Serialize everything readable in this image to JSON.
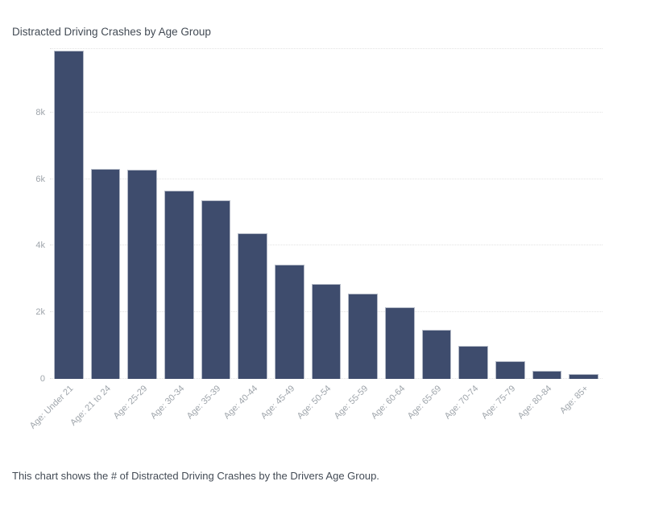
{
  "title": "Distracted Driving Crashes by Age Group",
  "caption": "This chart shows the # of Distracted Driving Crashes by the Drivers Age Group.",
  "chart_data": {
    "type": "bar",
    "title": "Distracted Driving Crashes by Age Group",
    "xlabel": "",
    "ylabel": "",
    "categories": [
      "Age: Under 21",
      "Age: 21 to 24",
      "Age: 25-29",
      "Age: 30-34",
      "Age: 35-39",
      "Age: 40-44",
      "Age: 45-49",
      "Age: 50-54",
      "Age: 55-59",
      "Age: 60-64",
      "Age: 65-69",
      "Age: 70-74",
      "Age: 75-79",
      "Age: 80-84",
      "Age: 85+"
    ],
    "values": [
      9850,
      6300,
      6290,
      5660,
      5370,
      4380,
      3440,
      2860,
      2570,
      2140,
      1480,
      990,
      520,
      240,
      140
    ],
    "ylim": [
      0,
      9900
    ],
    "yticks": [
      {
        "value": 0,
        "label": "0"
      },
      {
        "value": 2000,
        "label": "2k"
      },
      {
        "value": 4000,
        "label": "4k"
      },
      {
        "value": 6000,
        "label": "6k"
      },
      {
        "value": 8000,
        "label": "8k"
      }
    ],
    "gridline_values": [
      0,
      2000,
      4000,
      6000,
      8000,
      9900
    ],
    "grid": "horizontal-dotted",
    "legend": "none",
    "bar_orientation": "vertical",
    "colors": {
      "bar_fill": "#3e4c6d",
      "bar_border": "#b4bac7",
      "gridline": "#e2e2e2",
      "axis_label": "#9fa5ab",
      "title_text": "#434b55",
      "caption_text": "#434b55",
      "background": "#ffffff"
    }
  }
}
